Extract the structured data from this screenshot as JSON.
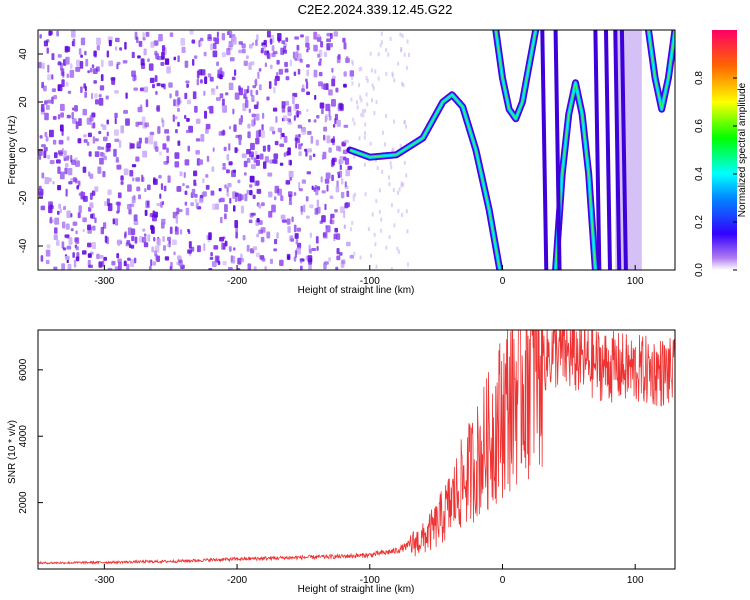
{
  "title": "C2E2.2024.339.12.45.G22",
  "colors": {
    "snr_line": "#ee3333",
    "spectrogram_noise": "#7a1ee6",
    "axis": "#000000"
  },
  "chart_data": [
    {
      "type": "heatmap",
      "xlabel": "Height of straight line (km)",
      "ylabel": "Frequency (Hz)",
      "xlim": [
        -350,
        130
      ],
      "ylim": [
        -50,
        50
      ],
      "xticks": [
        -300,
        -200,
        -100,
        0,
        100
      ],
      "yticks": [
        -40,
        -20,
        0,
        20,
        40
      ],
      "colorbar": {
        "label": "Normalized spectral amplitude",
        "ticks": [
          0.0,
          0.2,
          0.4,
          0.6,
          0.8
        ],
        "range": [
          0,
          1
        ],
        "colormap": "rainbow"
      },
      "features": [
        {
          "name": "noise",
          "x_range": [
            -350,
            -115
          ]
        },
        {
          "name": "main trace",
          "x": [
            -115,
            -100,
            -80,
            -60,
            -45,
            -38,
            -30,
            -20,
            -10,
            -2
          ],
          "y": [
            0,
            -3,
            -2,
            5,
            20,
            23,
            18,
            0,
            -25,
            -50
          ]
        },
        {
          "name": "arc 1",
          "x": [
            -5,
            0,
            5,
            10,
            15,
            20,
            25
          ],
          "y": [
            50,
            30,
            17,
            13,
            20,
            35,
            50
          ]
        },
        {
          "name": "arc 2",
          "x": [
            40,
            45,
            50,
            55,
            60,
            65,
            70
          ],
          "y": [
            -50,
            -10,
            15,
            28,
            15,
            -10,
            -50
          ]
        },
        {
          "name": "arc 3",
          "x": [
            110,
            115,
            120,
            125,
            130
          ],
          "y": [
            50,
            30,
            17,
            30,
            50
          ]
        }
      ]
    },
    {
      "type": "line",
      "xlabel": "Height of straight line (km)",
      "ylabel": "SNR (10 * v/v)",
      "xlim": [
        -350,
        130
      ],
      "ylim": [
        0,
        7200
      ],
      "xticks": [
        -300,
        -200,
        -100,
        0,
        100
      ],
      "yticks": [
        2000,
        4000,
        6000
      ],
      "series": [
        {
          "x": [
            -350,
            -300,
            -250,
            -200,
            -150,
            -120,
            -100,
            -80,
            -60,
            -50,
            -40,
            -30,
            -20,
            -10,
            0,
            10,
            20,
            30,
            40,
            50,
            60,
            80,
            100,
            130
          ],
          "y": [
            180,
            200,
            230,
            300,
            350,
            380,
            420,
            550,
            900,
            1300,
            1900,
            2600,
            3200,
            3900,
            4700,
            5400,
            6000,
            6400,
            6550,
            6450,
            6300,
            6100,
            6000,
            5900
          ]
        }
      ]
    }
  ]
}
